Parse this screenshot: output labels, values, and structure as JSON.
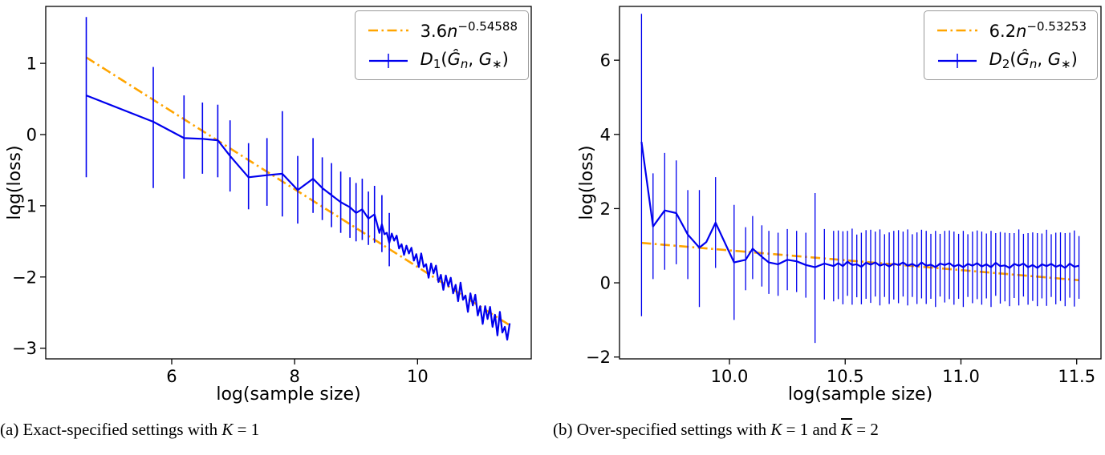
{
  "colors": {
    "blue": "#0000EE",
    "orange": "#FFA500",
    "axis": "#000000",
    "background": "#FFFFFF"
  },
  "chart_data": [
    {
      "type": "line+errorbar",
      "title": "",
      "xlabel": "log(sample size)",
      "ylabel": "log(loss)",
      "xlim": [
        3.95,
        11.85
      ],
      "ylim": [
        -3.15,
        1.8
      ],
      "grid": false,
      "legend_loc": "upper right",
      "xticks": [
        {
          "v": 6,
          "label": "6"
        },
        {
          "v": 8,
          "label": "8"
        },
        {
          "v": 10,
          "label": "10"
        }
      ],
      "yticks": [
        {
          "v": 1,
          "label": "1"
        },
        {
          "v": 0,
          "label": "0"
        },
        {
          "v": -1,
          "label": "−1"
        },
        {
          "v": -2,
          "label": "−2"
        },
        {
          "v": -3,
          "label": "−3"
        }
      ],
      "fit": {
        "intercept": 3.6,
        "slope": -0.54588,
        "x0": 4.61,
        "x1": 11.5
      },
      "legend": {
        "fit": {
          "coef": "3.6",
          "var": "n",
          "exp": "−0.54588"
        },
        "series": {
          "d": "D",
          "dsub": "1",
          "open": "(",
          "ghat": "Ĝ",
          "ghatsub": "n",
          "comma": ", ",
          "g": "G",
          "gsub": "∗",
          "close": ")"
        }
      },
      "series": {
        "points": [
          [
            4.61,
            0.55
          ],
          [
            5.7,
            0.18
          ],
          [
            6.2,
            -0.05
          ],
          [
            6.5,
            -0.06
          ],
          [
            6.75,
            -0.08
          ],
          [
            6.95,
            -0.3
          ],
          [
            7.25,
            -0.6
          ],
          [
            7.55,
            -0.57
          ],
          [
            7.8,
            -0.55
          ],
          [
            8.05,
            -0.78
          ],
          [
            8.3,
            -0.62
          ],
          [
            8.45,
            -0.75
          ],
          [
            8.6,
            -0.85
          ],
          [
            8.75,
            -0.95
          ],
          [
            8.9,
            -1.02
          ],
          [
            9.0,
            -1.1
          ],
          [
            9.1,
            -1.05
          ],
          [
            9.2,
            -1.18
          ],
          [
            9.3,
            -1.12
          ],
          [
            9.34,
            -1.25
          ],
          [
            9.38,
            -1.38
          ],
          [
            9.42,
            -1.26
          ],
          [
            9.46,
            -1.4
          ],
          [
            9.5,
            -1.38
          ],
          [
            9.54,
            -1.52
          ],
          [
            9.58,
            -1.39
          ],
          [
            9.62,
            -1.49
          ],
          [
            9.66,
            -1.42
          ],
          [
            9.7,
            -1.6
          ],
          [
            9.74,
            -1.54
          ],
          [
            9.78,
            -1.69
          ],
          [
            9.82,
            -1.56
          ],
          [
            9.86,
            -1.67
          ],
          [
            9.9,
            -1.59
          ],
          [
            9.94,
            -1.77
          ],
          [
            9.98,
            -1.68
          ],
          [
            10.02,
            -1.86
          ],
          [
            10.06,
            -1.67
          ],
          [
            10.1,
            -1.86
          ],
          [
            10.14,
            -1.82
          ],
          [
            10.18,
            -2.01
          ],
          [
            10.22,
            -1.81
          ],
          [
            10.26,
            -1.95
          ],
          [
            10.3,
            -1.84
          ],
          [
            10.34,
            -2.07
          ],
          [
            10.38,
            -1.97
          ],
          [
            10.42,
            -2.18
          ],
          [
            10.46,
            -1.98
          ],
          [
            10.5,
            -2.13
          ],
          [
            10.54,
            -2.01
          ],
          [
            10.58,
            -2.23
          ],
          [
            10.62,
            -2.11
          ],
          [
            10.66,
            -2.34
          ],
          [
            10.7,
            -2.08
          ],
          [
            10.74,
            -2.32
          ],
          [
            10.78,
            -2.26
          ],
          [
            10.82,
            -2.49
          ],
          [
            10.86,
            -2.23
          ],
          [
            10.9,
            -2.4
          ],
          [
            10.94,
            -2.25
          ],
          [
            10.98,
            -2.54
          ],
          [
            11.02,
            -2.41
          ],
          [
            11.06,
            -2.66
          ],
          [
            11.1,
            -2.41
          ],
          [
            11.14,
            -2.59
          ],
          [
            11.18,
            -2.42
          ],
          [
            11.22,
            -2.7
          ],
          [
            11.26,
            -2.53
          ],
          [
            11.3,
            -2.82
          ],
          [
            11.34,
            -2.49
          ],
          [
            11.38,
            -2.78
          ],
          [
            11.42,
            -2.7
          ],
          [
            11.46,
            -2.88
          ],
          [
            11.5,
            -2.65
          ]
        ],
        "errorbars": [
          [
            4.61,
            -0.6,
            1.65
          ],
          [
            5.7,
            -0.75,
            0.95
          ],
          [
            6.2,
            -0.62,
            0.55
          ],
          [
            6.5,
            -0.55,
            0.45
          ],
          [
            6.75,
            -0.6,
            0.42
          ],
          [
            6.95,
            -0.8,
            0.2
          ],
          [
            7.25,
            -1.05,
            -0.12
          ],
          [
            7.55,
            -1.0,
            -0.05
          ],
          [
            7.8,
            -1.15,
            0.33
          ],
          [
            8.05,
            -1.25,
            -0.3
          ],
          [
            8.3,
            -1.1,
            -0.05
          ],
          [
            8.45,
            -1.2,
            -0.32
          ],
          [
            8.6,
            -1.3,
            -0.4
          ],
          [
            8.75,
            -1.38,
            -0.52
          ],
          [
            8.9,
            -1.45,
            -0.6
          ],
          [
            9.0,
            -1.5,
            -0.68
          ],
          [
            9.1,
            -1.48,
            -0.62
          ],
          [
            9.2,
            -1.55,
            -0.8
          ],
          [
            9.3,
            -1.52,
            -0.72
          ],
          [
            9.42,
            -1.65,
            -0.85
          ],
          [
            9.54,
            -1.85,
            -1.1
          ]
        ]
      },
      "caption": {
        "prefix": "(a) Exact-specified settings with ",
        "k": "K",
        "suffix": " = 1"
      }
    },
    {
      "type": "line+errorbar",
      "title": "",
      "xlabel": "log(sample size)",
      "ylabel": "log(loss)",
      "xlim": [
        9.525,
        11.605
      ],
      "ylim": [
        -2.05,
        7.45
      ],
      "grid": false,
      "legend_loc": "upper right",
      "xticks": [
        {
          "v": 10,
          "label": "10.0"
        },
        {
          "v": 10.5,
          "label": "10.5"
        },
        {
          "v": 11,
          "label": "11.0"
        },
        {
          "v": 11.5,
          "label": "11.5"
        }
      ],
      "yticks": [
        {
          "v": 6,
          "label": "6"
        },
        {
          "v": 4,
          "label": "4"
        },
        {
          "v": 2,
          "label": "2"
        },
        {
          "v": 0,
          "label": "0"
        },
        {
          "v": -2,
          "label": "−2"
        }
      ],
      "fit": {
        "intercept": 6.2,
        "slope": -0.53253,
        "x0": 9.62,
        "x1": 11.51
      },
      "legend": {
        "fit": {
          "coef": "6.2",
          "var": "n",
          "exp": "−0.53253"
        },
        "series": {
          "d": "D",
          "dsub": "2",
          "open": "(",
          "ghat": "Ĝ",
          "ghatsub": "n",
          "comma": ", ",
          "g": "G",
          "gsub": "∗",
          "close": ")"
        }
      },
      "series": {
        "points": [
          [
            9.62,
            3.8
          ],
          [
            9.67,
            1.52
          ],
          [
            9.72,
            1.95
          ],
          [
            9.77,
            1.88
          ],
          [
            9.82,
            1.3
          ],
          [
            9.87,
            0.95
          ],
          [
            9.9,
            1.1
          ],
          [
            9.94,
            1.62
          ],
          [
            9.99,
            0.95
          ],
          [
            10.02,
            0.55
          ],
          [
            10.07,
            0.62
          ],
          [
            10.1,
            0.92
          ],
          [
            10.14,
            0.7
          ],
          [
            10.17,
            0.55
          ],
          [
            10.21,
            0.5
          ],
          [
            10.25,
            0.62
          ],
          [
            10.29,
            0.58
          ],
          [
            10.33,
            0.48
          ],
          [
            10.37,
            0.42
          ],
          [
            10.41,
            0.52
          ],
          [
            10.45,
            0.45
          ],
          [
            10.47,
            0.53
          ],
          [
            10.49,
            0.45
          ],
          [
            10.51,
            0.57
          ],
          [
            10.53,
            0.48
          ],
          [
            10.55,
            0.5
          ],
          [
            10.57,
            0.43
          ],
          [
            10.59,
            0.54
          ],
          [
            10.61,
            0.49
          ],
          [
            10.63,
            0.55
          ],
          [
            10.65,
            0.46
          ],
          [
            10.67,
            0.51
          ],
          [
            10.69,
            0.44
          ],
          [
            10.71,
            0.52
          ],
          [
            10.73,
            0.48
          ],
          [
            10.75,
            0.55
          ],
          [
            10.77,
            0.46
          ],
          [
            10.79,
            0.51
          ],
          [
            10.81,
            0.44
          ],
          [
            10.83,
            0.55
          ],
          [
            10.85,
            0.46
          ],
          [
            10.87,
            0.49
          ],
          [
            10.89,
            0.42
          ],
          [
            10.91,
            0.52
          ],
          [
            10.93,
            0.48
          ],
          [
            10.95,
            0.53
          ],
          [
            10.97,
            0.44
          ],
          [
            10.99,
            0.49
          ],
          [
            11.01,
            0.42
          ],
          [
            11.03,
            0.51
          ],
          [
            11.05,
            0.46
          ],
          [
            11.07,
            0.53
          ],
          [
            11.09,
            0.44
          ],
          [
            11.11,
            0.5
          ],
          [
            11.13,
            0.42
          ],
          [
            11.15,
            0.54
          ],
          [
            11.17,
            0.45
          ],
          [
            11.19,
            0.47
          ],
          [
            11.21,
            0.4
          ],
          [
            11.23,
            0.51
          ],
          [
            11.25,
            0.46
          ],
          [
            11.27,
            0.52
          ],
          [
            11.29,
            0.42
          ],
          [
            11.31,
            0.48
          ],
          [
            11.33,
            0.4
          ],
          [
            11.35,
            0.5
          ],
          [
            11.37,
            0.45
          ],
          [
            11.39,
            0.51
          ],
          [
            11.41,
            0.43
          ],
          [
            11.43,
            0.48
          ],
          [
            11.45,
            0.4
          ],
          [
            11.47,
            0.52
          ],
          [
            11.49,
            0.43
          ],
          [
            11.51,
            0.46
          ]
        ],
        "errorbars": [
          [
            9.62,
            -0.9,
            7.25
          ],
          [
            9.67,
            0.1,
            2.95
          ],
          [
            9.72,
            0.35,
            3.5
          ],
          [
            9.77,
            0.5,
            3.3
          ],
          [
            9.82,
            0.1,
            2.5
          ],
          [
            9.87,
            -0.65,
            2.5
          ],
          [
            9.94,
            0.4,
            2.85
          ],
          [
            10.02,
            -1.0,
            2.1
          ],
          [
            10.07,
            -0.2,
            1.5
          ],
          [
            10.1,
            0.1,
            1.8
          ],
          [
            10.14,
            -0.1,
            1.55
          ],
          [
            10.17,
            -0.3,
            1.4
          ],
          [
            10.21,
            -0.35,
            1.35
          ],
          [
            10.25,
            -0.2,
            1.45
          ],
          [
            10.29,
            -0.25,
            1.4
          ],
          [
            10.33,
            -0.4,
            1.35
          ],
          [
            10.37,
            -1.62,
            2.42
          ],
          [
            10.41,
            -0.45,
            1.45
          ],
          [
            10.45,
            -0.5,
            1.4
          ],
          [
            10.47,
            -0.44,
            1.41
          ],
          [
            10.49,
            -0.58,
            1.39
          ],
          [
            10.51,
            -0.35,
            1.4
          ],
          [
            10.53,
            -0.59,
            1.46
          ],
          [
            10.55,
            -0.39,
            1.3
          ],
          [
            10.57,
            -0.58,
            1.35
          ],
          [
            10.59,
            -0.43,
            1.42
          ],
          [
            10.61,
            -0.54,
            1.43
          ],
          [
            10.63,
            -0.37,
            1.38
          ],
          [
            10.65,
            -0.61,
            1.44
          ],
          [
            10.67,
            -0.38,
            1.31
          ],
          [
            10.69,
            -0.57,
            1.36
          ],
          [
            10.71,
            -0.45,
            1.4
          ],
          [
            10.73,
            -0.55,
            1.42
          ],
          [
            10.75,
            -0.37,
            1.38
          ],
          [
            10.77,
            -0.61,
            1.44
          ],
          [
            10.79,
            -0.38,
            1.31
          ],
          [
            10.81,
            -0.57,
            1.36
          ],
          [
            10.83,
            -0.42,
            1.43
          ],
          [
            10.85,
            -0.57,
            1.4
          ],
          [
            10.87,
            -0.43,
            1.32
          ],
          [
            10.89,
            -0.65,
            1.4
          ],
          [
            10.91,
            -0.37,
            1.32
          ],
          [
            10.93,
            -0.53,
            1.4
          ],
          [
            10.95,
            -0.44,
            1.41
          ],
          [
            10.97,
            -0.59,
            1.38
          ],
          [
            10.99,
            -0.43,
            1.32
          ],
          [
            11.01,
            -0.65,
            1.4
          ],
          [
            11.03,
            -0.38,
            1.31
          ],
          [
            11.05,
            -0.55,
            1.38
          ],
          [
            11.07,
            -0.44,
            1.41
          ],
          [
            11.09,
            -0.59,
            1.38
          ],
          [
            11.11,
            -0.42,
            1.33
          ],
          [
            11.13,
            -0.65,
            1.4
          ],
          [
            11.15,
            -0.35,
            1.34
          ],
          [
            11.17,
            -0.56,
            1.37
          ],
          [
            11.19,
            -0.5,
            1.35
          ],
          [
            11.21,
            -0.63,
            1.34
          ],
          [
            11.23,
            -0.41,
            1.34
          ],
          [
            11.25,
            -0.61,
            1.44
          ],
          [
            11.27,
            -0.37,
            1.32
          ],
          [
            11.29,
            -0.59,
            1.34
          ],
          [
            11.31,
            -0.49,
            1.36
          ],
          [
            11.33,
            -0.63,
            1.34
          ],
          [
            11.35,
            -0.42,
            1.33
          ],
          [
            11.37,
            -0.62,
            1.43
          ],
          [
            11.39,
            -0.38,
            1.31
          ],
          [
            11.41,
            -0.58,
            1.35
          ],
          [
            11.43,
            -0.49,
            1.36
          ],
          [
            11.45,
            -0.63,
            1.34
          ],
          [
            11.47,
            -0.4,
            1.35
          ],
          [
            11.49,
            -0.64,
            1.41
          ],
          [
            11.51,
            -0.43,
            1.26
          ]
        ]
      },
      "caption": {
        "prefix": "(b) Over-specified settings with ",
        "k1": "K",
        "mid": " = 1 and ",
        "k2": "K",
        "suffix": " = 2"
      }
    }
  ]
}
